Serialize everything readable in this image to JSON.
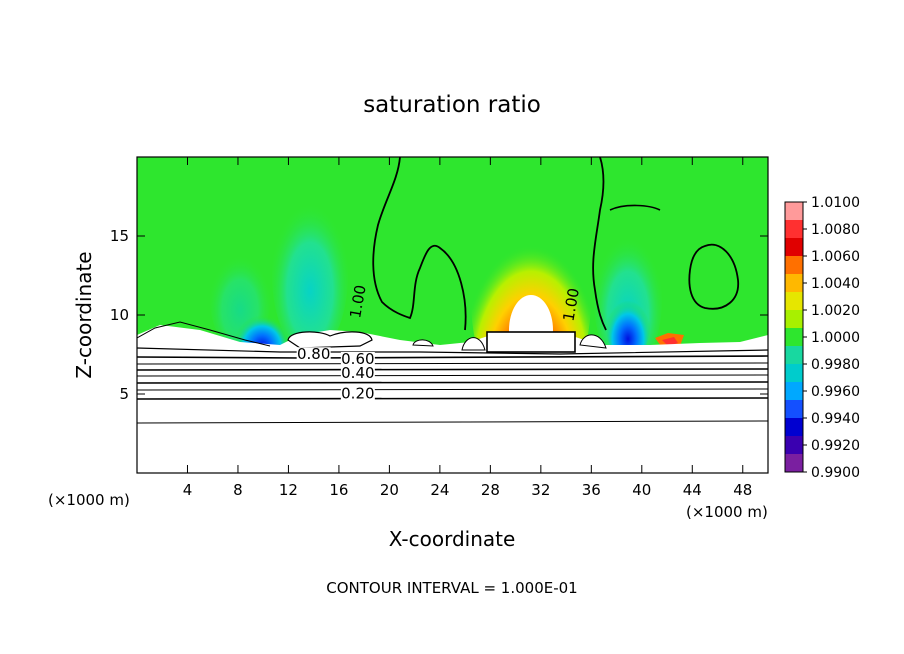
{
  "chart_data": {
    "type": "heatmap",
    "title": "saturation ratio",
    "xlabel": "X-coordinate",
    "ylabel": "Z-coordinate",
    "x_unit": "(×1000 m)",
    "footer": "CONTOUR INTERVAL = 1.000E-01",
    "xlim": [
      0,
      50
    ],
    "ylim": [
      0,
      20
    ],
    "x_ticks": [
      4,
      8,
      12,
      16,
      20,
      24,
      28,
      32,
      36,
      40,
      44,
      48
    ],
    "y_ticks": [
      5,
      10,
      15
    ],
    "colorbar": {
      "min": 0.99,
      "max": 1.01,
      "labels": [
        "1.0100",
        "1.0080",
        "1.0060",
        "1.0040",
        "1.0020",
        "1.0000",
        "0.9980",
        "0.9960",
        "0.9940",
        "0.9920",
        "0.9900"
      ],
      "colors": [
        "#ff9a9a",
        "#ff3030",
        "#e00000",
        "#ff7000",
        "#ffb800",
        "#e6e600",
        "#a8f000",
        "#2ee62e",
        "#18d8a0",
        "#00cccc",
        "#00a8ff",
        "#1450ff",
        "#0000d0",
        "#3a00b0",
        "#7a1fa0"
      ]
    },
    "contour_labels": [
      {
        "text": "1.00",
        "x": 17.9,
        "z": 10.8
      },
      {
        "text": "1.00",
        "x": 34.8,
        "z": 10.6
      },
      {
        "text": "0.80",
        "x": 14.0,
        "z": 7.2
      },
      {
        "text": "0.60",
        "x": 17.5,
        "z": 6.9
      },
      {
        "text": "0.40",
        "x": 17.5,
        "z": 6.0
      },
      {
        "text": "0.20",
        "x": 17.5,
        "z": 4.7
      }
    ]
  }
}
